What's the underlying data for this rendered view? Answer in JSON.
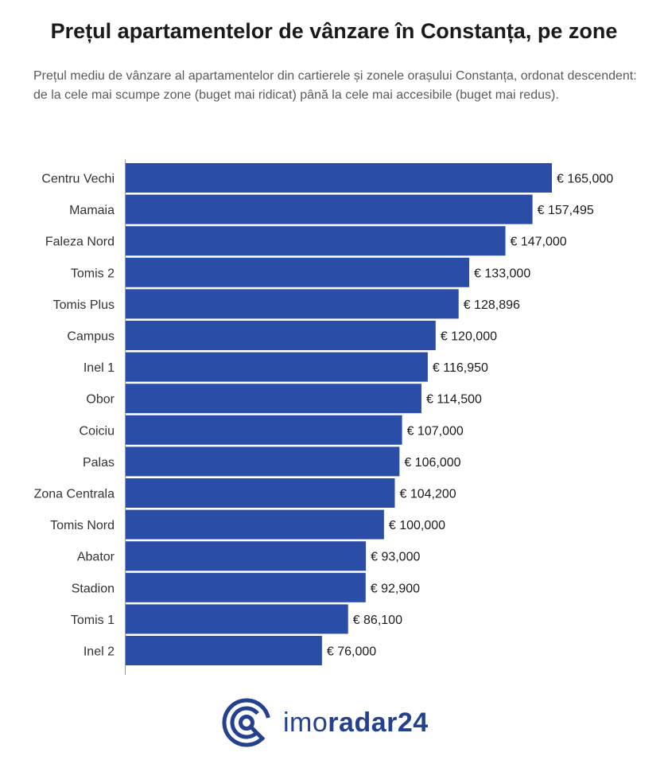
{
  "header": {
    "title": "Prețul apartamentelor de vânzare în Constanța, pe zone",
    "subtitle": "Prețul mediu de vânzare al apartamentelor din cartierele și zonele orașului Constanța, ordonat descendent: de la cele mai scumpe zone (buget mai ridicat) până la cele mai accesibile (buget mai redus)."
  },
  "chart_data": {
    "type": "bar",
    "orientation": "horizontal",
    "title": "Prețul apartamentelor de vânzare în Constanța, pe zone",
    "categories": [
      "Centru Vechi",
      "Mamaia",
      "Faleza Nord",
      "Tomis 2",
      "Tomis Plus",
      "Campus",
      "Inel 1",
      "Obor",
      "Coiciu",
      "Palas",
      "Zona Centrala",
      "Tomis Nord",
      "Abator",
      "Stadion",
      "Tomis 1",
      "Inel 2"
    ],
    "values": [
      165000,
      157495,
      147000,
      133000,
      128896,
      120000,
      116950,
      114500,
      107000,
      106000,
      104200,
      100000,
      93000,
      92900,
      86100,
      76000
    ],
    "value_labels": [
      "€ 165,000",
      "€ 157,495",
      "€ 147,000",
      "€ 133,000",
      "€ 128,896",
      "€ 120,000",
      "€ 116,950",
      "€ 114,500",
      "€ 107,000",
      "€ 106,000",
      "€ 104,200",
      "€ 100,000",
      "€ 93,000",
      "€ 92,900",
      "€ 86,100",
      "€ 76,000"
    ],
    "xlim": [
      0,
      165000
    ],
    "bar_color": "#2a4ea8",
    "grid": false
  },
  "logo": {
    "text_regular": "imo",
    "text_bold": "radar24",
    "color": "#23418f"
  }
}
